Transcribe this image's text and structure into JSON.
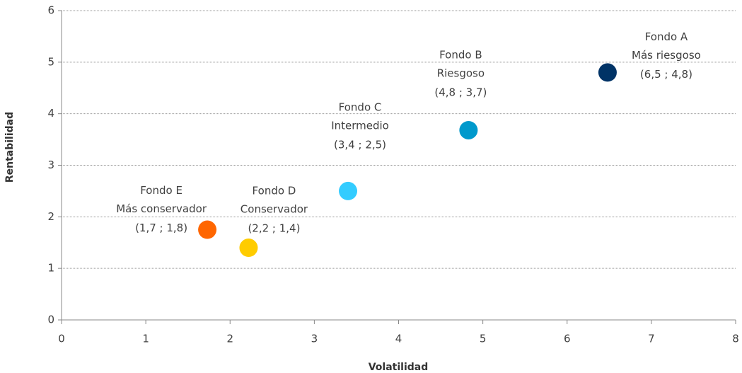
{
  "chart_data": {
    "type": "scatter",
    "x_label": "Volatilidad",
    "y_label": "Rentabilidad",
    "xlim": [
      0,
      8
    ],
    "ylim": [
      0,
      6
    ],
    "xticks": [
      0,
      1,
      2,
      3,
      4,
      5,
      6,
      7,
      8
    ],
    "yticks": [
      0,
      1,
      2,
      3,
      4,
      5,
      6
    ],
    "grid": true,
    "series": [
      {
        "name": "Fondo E",
        "description": "Más conservador",
        "color": "#ff6600",
        "x": [
          1.73
        ],
        "values": [
          1.75
        ],
        "value_labels": [
          "(1,7 ; 1,8)"
        ]
      },
      {
        "name": "Fondo D",
        "description": "Conservador",
        "color": "#ffcc00",
        "x": [
          2.22
        ],
        "values": [
          1.4
        ],
        "value_labels": [
          "(2,2 ; 1,4)"
        ]
      },
      {
        "name": "Fondo C",
        "description": "Intermedio",
        "color": "#33ccff",
        "x": [
          3.4
        ],
        "values": [
          2.5
        ],
        "value_labels": [
          "(3,4 ; 2,5)"
        ]
      },
      {
        "name": "Fondo B",
        "description": "Riesgoso",
        "color": "#0099cc",
        "x": [
          4.83
        ],
        "values": [
          3.68
        ],
        "value_labels": [
          "(4,8 ; 3,7)"
        ]
      },
      {
        "name": "Fondo A",
        "description": "Más riesgoso",
        "color": "#003366",
        "x": [
          6.48
        ],
        "values": [
          4.8
        ],
        "value_labels": [
          "(6,5 ; 4,8)"
        ]
      }
    ]
  }
}
